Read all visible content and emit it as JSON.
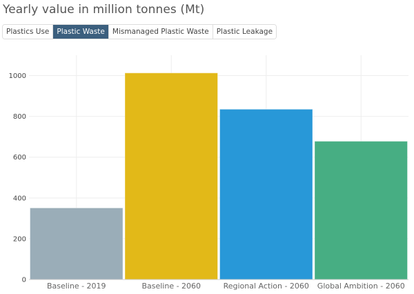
{
  "title": "Yearly value in million tonnes (Mt)",
  "tabs": [
    {
      "label": "Plastics Use",
      "active": false
    },
    {
      "label": "Plastic Waste",
      "active": true
    },
    {
      "label": "Mismanaged Plastic Waste",
      "active": false
    },
    {
      "label": "Plastic Leakage",
      "active": false
    }
  ],
  "chart_data": {
    "type": "bar",
    "title": "Yearly value in million tonnes (Mt)",
    "categories": [
      "Baseline - 2019",
      "Baseline - 2060",
      "Regional Action - 2060",
      "Global Ambition - 2060"
    ],
    "values": [
      351,
      1013,
      835,
      678
    ],
    "colors": [
      "#9aadb8",
      "#e2b918",
      "#2898d8",
      "#47ae83"
    ],
    "ylim": [
      0,
      1100
    ],
    "yticks": [
      0,
      200,
      400,
      600,
      800,
      1000
    ],
    "grid": true,
    "xlabel": "",
    "ylabel": ""
  }
}
